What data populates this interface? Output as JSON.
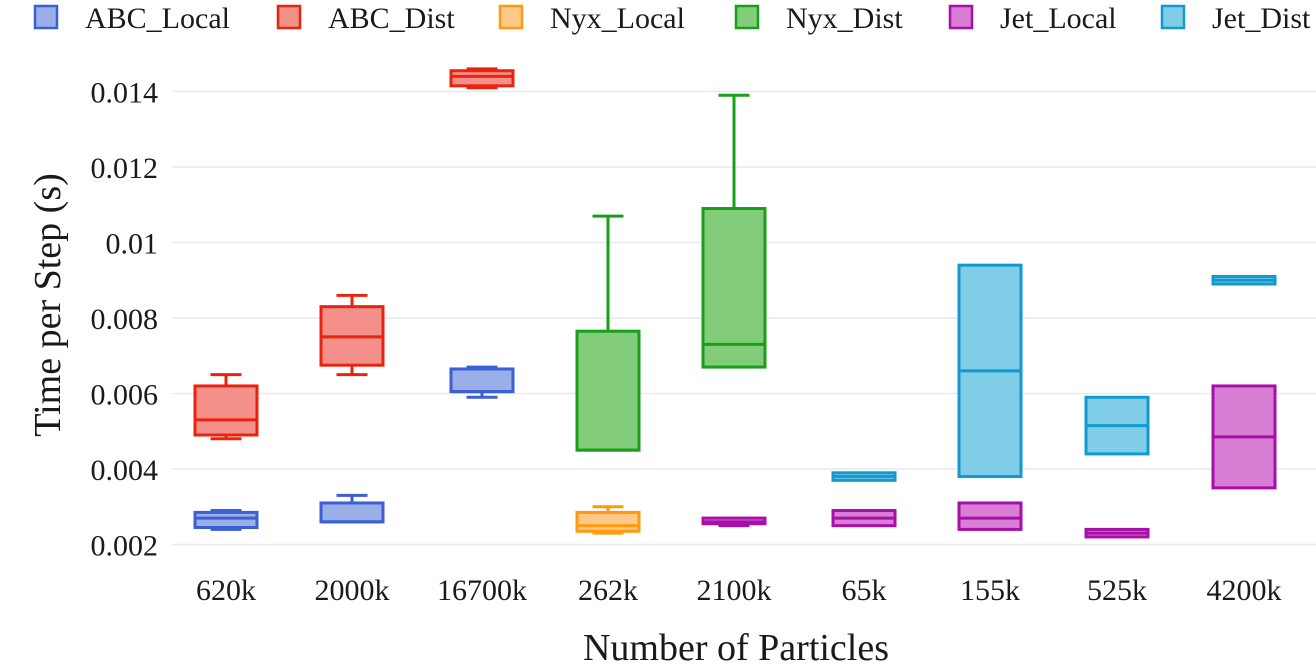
{
  "chart_data": {
    "type": "box",
    "title": "",
    "xlabel": "Number of Particles",
    "ylabel": "Time per Step (s)",
    "ylim": [
      0.0016,
      0.0148
    ],
    "yticks": [
      0.002,
      0.004,
      0.006,
      0.008,
      0.01,
      0.012,
      0.014
    ],
    "ytick_labels": [
      "0.002",
      "0.004",
      "0.006",
      "0.008",
      "0.01",
      "0.012",
      "0.014"
    ],
    "grid": "horizontal",
    "legend_position": "top",
    "categories": [
      "620k",
      "2000k",
      "16700k",
      "262k",
      "2100k",
      "65k",
      "155k",
      "525k",
      "4200k"
    ],
    "series": [
      {
        "name": "ABC_Local",
        "color": "#3b5fd4",
        "fill": "#9aaee8",
        "boxes": [
          {
            "category": "620k",
            "min": 0.0024,
            "q1": 0.00245,
            "median": 0.0027,
            "q3": 0.00285,
            "max": 0.0029
          },
          {
            "category": "2000k",
            "min": 0.0026,
            "q1": 0.0026,
            "median": 0.0026,
            "q3": 0.0031,
            "max": 0.0033
          },
          {
            "category": "16700k",
            "min": 0.0059,
            "q1": 0.00605,
            "median": 0.00605,
            "q3": 0.00665,
            "max": 0.0067
          }
        ]
      },
      {
        "name": "ABC_Dist",
        "color": "#e8230f",
        "fill": "#f4908a",
        "boxes": [
          {
            "category": "620k",
            "min": 0.0048,
            "q1": 0.0049,
            "median": 0.0053,
            "q3": 0.0062,
            "max": 0.0065
          },
          {
            "category": "2000k",
            "min": 0.0065,
            "q1": 0.00675,
            "median": 0.0075,
            "q3": 0.0083,
            "max": 0.0086
          },
          {
            "category": "16700k",
            "min": 0.0141,
            "q1": 0.01415,
            "median": 0.0144,
            "q3": 0.01455,
            "max": 0.0146
          }
        ]
      },
      {
        "name": "Nyx_Local",
        "color": "#ff9a0f",
        "fill": "#ffc98a",
        "boxes": [
          {
            "category": "262k",
            "min": 0.0023,
            "q1": 0.00235,
            "median": 0.0025,
            "q3": 0.00285,
            "max": 0.003
          }
        ]
      },
      {
        "name": "Nyx_Dist",
        "color": "#18a01a",
        "fill": "#82cc7a",
        "boxes": [
          {
            "category": "262k",
            "min": 0.0045,
            "q1": 0.0045,
            "median": 0.0045,
            "q3": 0.00765,
            "max": 0.0107
          },
          {
            "category": "2100k",
            "min": 0.0067,
            "q1": 0.0067,
            "median": 0.0073,
            "q3": 0.0109,
            "max": 0.0139
          }
        ]
      },
      {
        "name": "Jet_Local",
        "color": "#a80fa8",
        "fill": "#d87ed4",
        "boxes": [
          {
            "category": "2100k",
            "min": 0.0025,
            "q1": 0.00255,
            "median": 0.0026,
            "q3": 0.0027,
            "max": 0.0027
          },
          {
            "category": "65k",
            "min": 0.0025,
            "q1": 0.0025,
            "median": 0.0027,
            "q3": 0.0029,
            "max": 0.0029
          },
          {
            "category": "155k",
            "min": 0.0024,
            "q1": 0.0024,
            "median": 0.0027,
            "q3": 0.0031,
            "max": 0.0031
          },
          {
            "category": "525k",
            "min": 0.0022,
            "q1": 0.0022,
            "median": 0.0023,
            "q3": 0.0024,
            "max": 0.0024
          },
          {
            "category": "4200k",
            "min": 0.0035,
            "q1": 0.0035,
            "median": 0.00485,
            "q3": 0.0062,
            "max": 0.0062
          }
        ]
      },
      {
        "name": "Jet_Dist",
        "color": "#0f9ad2",
        "fill": "#7fcde6",
        "boxes": [
          {
            "category": "65k",
            "min": 0.0037,
            "q1": 0.0037,
            "median": 0.0038,
            "q3": 0.0039,
            "max": 0.0039
          },
          {
            "category": "155k",
            "min": 0.0038,
            "q1": 0.0038,
            "median": 0.0066,
            "q3": 0.0094,
            "max": 0.0094
          },
          {
            "category": "525k",
            "min": 0.0044,
            "q1": 0.0044,
            "median": 0.00515,
            "q3": 0.0059,
            "max": 0.0059
          },
          {
            "category": "4200k",
            "min": 0.0089,
            "q1": 0.0089,
            "median": 0.009,
            "q3": 0.0091,
            "max": 0.0091
          }
        ]
      }
    ]
  }
}
